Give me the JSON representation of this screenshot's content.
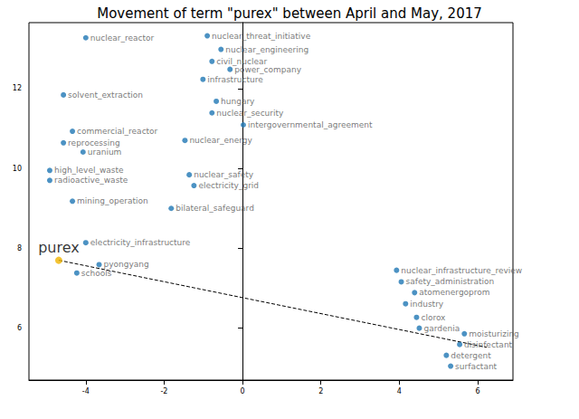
{
  "chart_data": {
    "type": "scatter",
    "title": "Movement of term \"purex\" between April and May, 2017",
    "color": "#1f77b4",
    "marker": "circle",
    "grid": false,
    "xlim": [
      -5.45,
      6.9
    ],
    "ylim": [
      4.7,
      13.65
    ],
    "xticks": [
      -4,
      -2,
      0,
      2,
      4,
      6
    ],
    "yticks": [
      6,
      8,
      10,
      12
    ],
    "points": [
      {
        "label": "nuclear_reactor",
        "x": -4.0,
        "y": 13.27
      },
      {
        "label": "nuclear_threat_initiative",
        "x": -0.9,
        "y": 13.32
      },
      {
        "label": "nuclear_engineering",
        "x": -0.55,
        "y": 12.98
      },
      {
        "label": "civil_nuclear",
        "x": -0.78,
        "y": 12.68
      },
      {
        "label": "power_company",
        "x": -0.32,
        "y": 12.48
      },
      {
        "label": "infrastructure",
        "x": -1.01,
        "y": 12.23
      },
      {
        "label": "solvent_extraction",
        "x": -4.57,
        "y": 11.84
      },
      {
        "label": "hungary",
        "x": -0.67,
        "y": 11.68
      },
      {
        "label": "nuclear_security",
        "x": -0.78,
        "y": 11.39
      },
      {
        "label": "intergovernmental_agreement",
        "x": 0.02,
        "y": 11.09
      },
      {
        "label": "commercial_reactor",
        "x": -4.34,
        "y": 10.93
      },
      {
        "label": "nuclear_energy",
        "x": -1.47,
        "y": 10.7
      },
      {
        "label": "reprocessing",
        "x": -4.57,
        "y": 10.64
      },
      {
        "label": "uranium",
        "x": -4.07,
        "y": 10.41
      },
      {
        "label": "high_level_waste",
        "x": -4.92,
        "y": 9.95
      },
      {
        "label": "nuclear_safety",
        "x": -1.36,
        "y": 9.84
      },
      {
        "label": "radioactive_waste",
        "x": -4.92,
        "y": 9.7
      },
      {
        "label": "electricity_grid",
        "x": -1.24,
        "y": 9.57
      },
      {
        "label": "mining_operation",
        "x": -4.34,
        "y": 9.18
      },
      {
        "label": "bilateral_safeguard",
        "x": -1.82,
        "y": 9.0
      },
      {
        "label": "electricity_infrastructure",
        "x": -4.0,
        "y": 8.14
      },
      {
        "label": "pyongyang",
        "x": -3.66,
        "y": 7.59
      },
      {
        "label": "schools",
        "x": -4.23,
        "y": 7.38
      },
      {
        "label": "nuclear_infrastructure_review",
        "x": 3.93,
        "y": 7.45
      },
      {
        "label": "safety_administration",
        "x": 4.05,
        "y": 7.16
      },
      {
        "label": "atomenergoprom",
        "x": 4.39,
        "y": 6.89
      },
      {
        "label": "industry",
        "x": 4.16,
        "y": 6.61
      },
      {
        "label": "clorox",
        "x": 4.44,
        "y": 6.27
      },
      {
        "label": "gardenia",
        "x": 4.51,
        "y": 6.0
      },
      {
        "label": "moisturizing",
        "x": 5.66,
        "y": 5.86
      },
      {
        "label": "disinfectant",
        "x": 5.54,
        "y": 5.59
      },
      {
        "label": "detergent",
        "x": 5.2,
        "y": 5.32
      },
      {
        "label": "surfactant",
        "x": 5.31,
        "y": 5.05
      }
    ],
    "movement": {
      "term": "purex",
      "color": "#f0b400",
      "line_style": "dashed",
      "x": [
        -4.69,
        6.23
      ],
      "y": [
        7.7,
        5.52
      ]
    }
  }
}
